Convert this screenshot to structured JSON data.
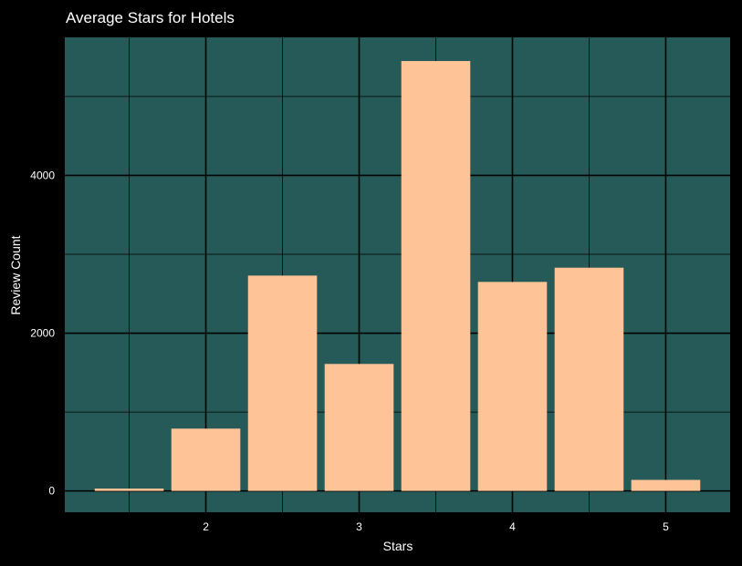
{
  "chart_data": {
    "type": "bar",
    "title": "Average Stars for Hotels",
    "xlabel": "Stars",
    "ylabel": "Review Count",
    "x": [
      1.5,
      2,
      2.5,
      3,
      3.5,
      4,
      4.5,
      5
    ],
    "values": [
      30,
      790,
      2730,
      1610,
      5450,
      2650,
      2830,
      140
    ],
    "xlim": [
      1.08,
      5.42
    ],
    "ylim": [
      -270,
      5750
    ],
    "xticks": [
      2,
      3,
      4,
      5
    ],
    "xtick_labels": [
      "2",
      "3",
      "4",
      "5"
    ],
    "yticks": [
      0,
      2000,
      4000
    ],
    "ytick_labels": [
      "0",
      "2000",
      "4000"
    ],
    "grid": true,
    "colors": {
      "background": "#000000",
      "plot_background": "#255a58",
      "bar": "#fec396",
      "grid": "#000000",
      "text": "#ffffff"
    }
  }
}
